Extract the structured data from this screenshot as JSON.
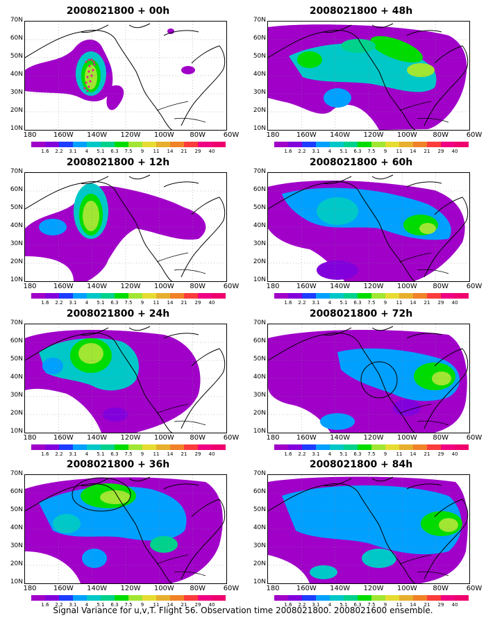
{
  "panels": [
    {
      "title": "2008021800 + 00h"
    },
    {
      "title": "2008021800 + 48h"
    },
    {
      "title": "2008021800 + 12h"
    },
    {
      "title": "2008021800 + 60h"
    },
    {
      "title": "2008021800 + 24h"
    },
    {
      "title": "2008021800 + 72h"
    },
    {
      "title": "2008021800 + 36h"
    },
    {
      "title": "2008021800 + 84h"
    }
  ],
  "lat_labels": [
    "70N",
    "60N",
    "50N",
    "40N",
    "30N",
    "20N",
    "10N"
  ],
  "lon_labels": [
    "180",
    "160W",
    "140W",
    "120W",
    "100W",
    "80W",
    "60W"
  ],
  "colorbar": {
    "labels": [
      "1.6",
      "2.2",
      "3.1",
      "4",
      "5.1",
      "6.3",
      "7.5",
      "9",
      "11",
      "14",
      "21",
      "29",
      "40"
    ],
    "colors": [
      "#a000c8",
      "#8200dc",
      "#1e3cff",
      "#00a0ff",
      "#00c8c8",
      "#00d28c",
      "#00dc00",
      "#a0e632",
      "#e6dc32",
      "#e6af2d",
      "#f08228",
      "#fa3c3c",
      "#f00082"
    ]
  },
  "footer": "Signal Variance for u,v,T. Flight 56. Observation time 2008021800. 2008021600 ensemble."
}
